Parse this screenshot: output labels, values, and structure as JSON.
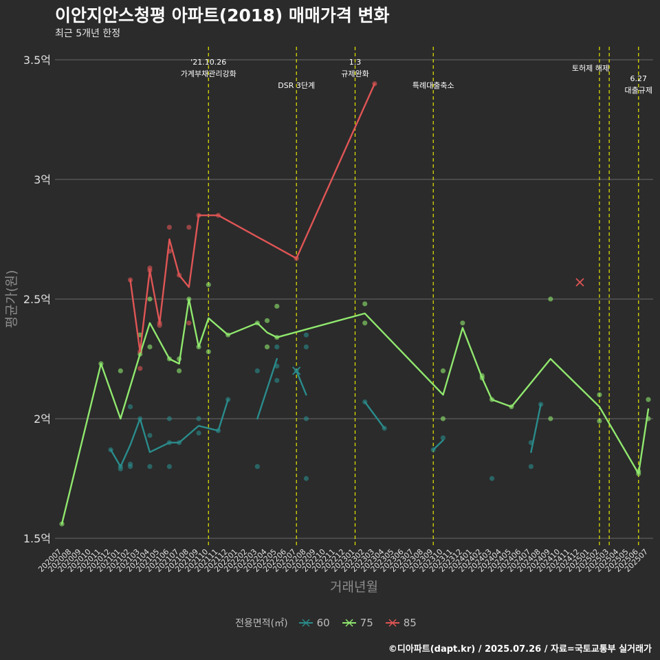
{
  "title": "이안지안스청평 아파트(2018) 매매가격 변화",
  "subtitle": "최근 5개년 한정",
  "caption": "©디아파트(dapt.kr) / 2025.07.26 / 자료=국토교통부 실거래가",
  "colors": {
    "background": "#2b2b2b",
    "grid": "#6a6a6a",
    "event_line": "#e8e800",
    "text": "#ffffff",
    "axis_text": "#e0e0e0",
    "axis_title": "#8c8c8c",
    "s60": "#2a8c8c",
    "s75": "#90e86e",
    "s85": "#e05555"
  },
  "chart_data": {
    "type": "line",
    "title": "이안지안스청평 아파트(2018) 매매가격 변화",
    "subtitle": "최근 5개년 한정",
    "xlabel": "거래년월",
    "ylabel": "평균가(원)",
    "ylim": [
      1.5,
      3.5
    ],
    "yticks": [
      1.5,
      2,
      2.5,
      3,
      3.5
    ],
    "ytick_labels": [
      "1.5억",
      "2억",
      "2.5억",
      "3억",
      "3.5억"
    ],
    "x": [
      "202007",
      "202008",
      "202009",
      "202010",
      "202011",
      "202012",
      "202101",
      "202102",
      "202103",
      "202104",
      "202105",
      "202106",
      "202107",
      "202108",
      "202109",
      "202110",
      "202111",
      "202112",
      "202201",
      "202202",
      "202203",
      "202204",
      "202205",
      "202206",
      "202207",
      "202208",
      "202209",
      "202210",
      "202211",
      "202212",
      "202301",
      "202302",
      "202303",
      "202304",
      "202305",
      "202306",
      "202307",
      "202308",
      "202309",
      "202310",
      "202311",
      "202312",
      "202401",
      "202402",
      "202403",
      "202404",
      "202405",
      "202406",
      "202407",
      "202408",
      "202409",
      "202410",
      "202411",
      "202412",
      "202501",
      "202502",
      "202503",
      "202504",
      "202505",
      "202506",
      "202507"
    ],
    "legend_title": "전용면적(㎡)",
    "legend_position": "bottom",
    "grid": "horizontal",
    "series": [
      {
        "name": "60",
        "color_key": "s60",
        "segments": [
          [
            [
              "202012",
              1.87
            ],
            [
              "202101",
              1.8
            ],
            [
              "202102",
              1.89
            ],
            [
              "202103",
              2.0
            ],
            [
              "202104",
              1.86
            ],
            [
              "202106",
              1.9
            ],
            [
              "202107",
              1.9
            ],
            [
              "202109",
              1.97
            ],
            [
              "202111",
              1.95
            ],
            [
              "202112",
              2.08
            ]
          ],
          [
            [
              "202203",
              2.0
            ],
            [
              "202205",
              2.25
            ]
          ],
          [
            [
              "202207",
              2.2
            ],
            [
              "202208",
              2.1
            ]
          ],
          [
            [
              "202302",
              2.07
            ],
            [
              "202304",
              1.96
            ]
          ],
          [
            [
              "202309",
              1.87
            ],
            [
              "202310",
              1.91
            ]
          ],
          [
            [
              "202407",
              1.86
            ],
            [
              "202408",
              2.06
            ]
          ]
        ],
        "points": [
          [
            "202012",
            1.87
          ],
          [
            "202101",
            1.79
          ],
          [
            "202101",
            1.8
          ],
          [
            "202102",
            1.8
          ],
          [
            "202102",
            1.81
          ],
          [
            "202102",
            2.05
          ],
          [
            "202103",
            2.0
          ],
          [
            "202104",
            1.93
          ],
          [
            "202104",
            1.8
          ],
          [
            "202106",
            1.8
          ],
          [
            "202106",
            1.9
          ],
          [
            "202106",
            2.0
          ],
          [
            "202107",
            1.9
          ],
          [
            "202109",
            1.94
          ],
          [
            "202109",
            2.0
          ],
          [
            "202111",
            1.95
          ],
          [
            "202112",
            2.08
          ],
          [
            "202203",
            1.8
          ],
          [
            "202203",
            2.2
          ],
          [
            "202205",
            2.3
          ],
          [
            "202205",
            2.16
          ],
          [
            "202205",
            2.22
          ],
          [
            "202207",
            2.2
          ],
          [
            "202208",
            2.35
          ],
          [
            "202208",
            2.3
          ],
          [
            "202208",
            2.0
          ],
          [
            "202208",
            1.75
          ],
          [
            "202302",
            2.07
          ],
          [
            "202304",
            1.96
          ],
          [
            "202309",
            1.87
          ],
          [
            "202310",
            1.92
          ],
          [
            "202403",
            1.75
          ],
          [
            "202407",
            1.8
          ],
          [
            "202407",
            1.9
          ],
          [
            "202408",
            2.06
          ]
        ],
        "crosses": [
          [
            "202207",
            2.2
          ]
        ]
      },
      {
        "name": "75",
        "color_key": "s75",
        "segments": [
          [
            [
              "202007",
              1.56
            ],
            [
              "202011",
              2.23
            ],
            [
              "202101",
              2.0
            ],
            [
              "202103",
              2.27
            ],
            [
              "202104",
              2.4
            ],
            [
              "202106",
              2.25
            ],
            [
              "202107",
              2.23
            ],
            [
              "202108",
              2.5
            ],
            [
              "202109",
              2.3
            ],
            [
              "202110",
              2.42
            ],
            [
              "202112",
              2.35
            ],
            [
              "202203",
              2.4
            ],
            [
              "202204",
              2.36
            ],
            [
              "202205",
              2.34
            ],
            [
              "202302",
              2.44
            ],
            [
              "202310",
              2.1
            ],
            [
              "202312",
              2.38
            ],
            [
              "202402",
              2.17
            ],
            [
              "202403",
              2.08
            ],
            [
              "202405",
              2.05
            ],
            [
              "202409",
              2.25
            ],
            [
              "202502",
              2.05
            ],
            [
              "202506",
              1.77
            ],
            [
              "202507",
              2.04
            ]
          ]
        ],
        "points": [
          [
            "202007",
            1.56
          ],
          [
            "202011",
            2.23
          ],
          [
            "202101",
            2.2
          ],
          [
            "202103",
            2.27
          ],
          [
            "202103",
            2.35
          ],
          [
            "202104",
            2.5
          ],
          [
            "202104",
            2.3
          ],
          [
            "202106",
            2.25
          ],
          [
            "202107",
            2.25
          ],
          [
            "202107",
            2.2
          ],
          [
            "202108",
            2.5
          ],
          [
            "202109",
            2.3
          ],
          [
            "202110",
            2.56
          ],
          [
            "202110",
            2.28
          ],
          [
            "202112",
            2.35
          ],
          [
            "202203",
            2.4
          ],
          [
            "202204",
            2.41
          ],
          [
            "202204",
            2.3
          ],
          [
            "202205",
            2.47
          ],
          [
            "202205",
            2.34
          ],
          [
            "202302",
            2.48
          ],
          [
            "202302",
            2.4
          ],
          [
            "202310",
            2.2
          ],
          [
            "202310",
            2.0
          ],
          [
            "202312",
            2.4
          ],
          [
            "202402",
            2.18
          ],
          [
            "202402",
            2.17
          ],
          [
            "202403",
            2.08
          ],
          [
            "202405",
            2.05
          ],
          [
            "202409",
            2.5
          ],
          [
            "202409",
            2.0
          ],
          [
            "202502",
            2.1
          ],
          [
            "202502",
            1.99
          ],
          [
            "202506",
            1.78
          ],
          [
            "202506",
            1.77
          ],
          [
            "202507",
            2.08
          ],
          [
            "202507",
            2.0
          ]
        ]
      },
      {
        "name": "85",
        "color_key": "s85",
        "segments": [
          [
            [
              "202102",
              2.58
            ],
            [
              "202103",
              2.28
            ],
            [
              "202104",
              2.62
            ],
            [
              "202105",
              2.4
            ],
            [
              "202106",
              2.75
            ],
            [
              "202107",
              2.6
            ],
            [
              "202108",
              2.55
            ],
            [
              "202109",
              2.85
            ],
            [
              "202111",
              2.85
            ],
            [
              "202207",
              2.67
            ],
            [
              "202303",
              3.4
            ]
          ]
        ],
        "points": [
          [
            "202102",
            2.58
          ],
          [
            "202103",
            2.21
          ],
          [
            "202103",
            2.28
          ],
          [
            "202104",
            2.63
          ],
          [
            "202104",
            2.62
          ],
          [
            "202105",
            2.39
          ],
          [
            "202105",
            2.4
          ],
          [
            "202106",
            2.8
          ],
          [
            "202106",
            2.7
          ],
          [
            "202107",
            2.6
          ],
          [
            "202108",
            2.8
          ],
          [
            "202108",
            2.4
          ],
          [
            "202109",
            2.85
          ],
          [
            "202111",
            2.85
          ],
          [
            "202207",
            2.67
          ],
          [
            "202303",
            3.4
          ]
        ],
        "crosses": [
          [
            "202412",
            2.57
          ]
        ]
      }
    ],
    "events": [
      {
        "x": "202110",
        "label1": "'21.10.26",
        "label2": "가계부채관리강화",
        "row": 0
      },
      {
        "x": "202207",
        "label1": "DSR 3단계",
        "label2": "",
        "row": 2
      },
      {
        "x": "202301",
        "label1": "1.3",
        "label2": "규제완화",
        "row": 0
      },
      {
        "x": "202309",
        "label1": "특례대출축소",
        "label2": "",
        "row": 2
      },
      {
        "x": "202502",
        "label1": "토허제 해제",
        "label2": "",
        "row": 1
      },
      {
        "x": "202503",
        "label1": "",
        "label2": "",
        "row": 1
      },
      {
        "x": "202506",
        "label1": "6.27",
        "label2": "대출규제",
        "row": 1
      }
    ]
  }
}
